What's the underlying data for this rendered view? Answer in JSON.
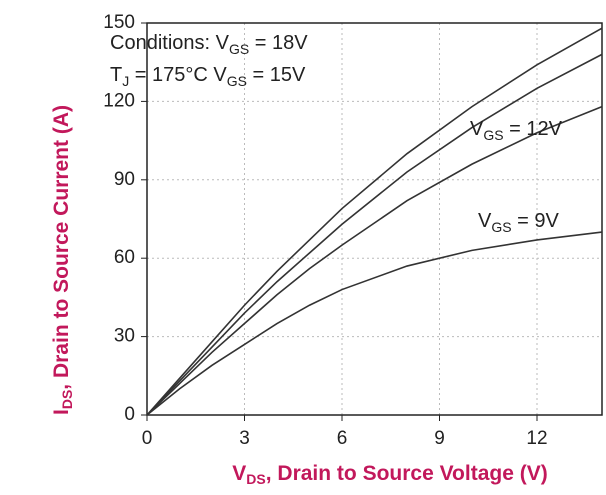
{
  "chart_data": {
    "type": "line",
    "y_label": "Drain to Source Current (A)",
    "y_label_sym": {
      "main": "I",
      "sub": "DS"
    },
    "x_label": "Drain to Source Voltage (V)",
    "x_label_sym": {
      "main": "V",
      "sub": "DS"
    },
    "x": [
      0,
      1,
      2,
      3,
      4,
      5,
      6,
      8,
      10,
      12,
      14
    ],
    "series": [
      {
        "name": "VGS = 18V",
        "color": "#333333",
        "values": [
          0,
          14,
          28,
          42,
          55,
          67,
          79,
          100,
          118,
          134,
          148
        ]
      },
      {
        "name": "VGS = 15V",
        "color": "#333333",
        "values": [
          0,
          13,
          26,
          39,
          51,
          62,
          73,
          93,
          110,
          125,
          138
        ]
      },
      {
        "name": "VGS = 12V",
        "color": "#333333",
        "values": [
          0,
          12,
          24,
          35,
          46,
          56,
          65,
          82,
          96,
          108,
          118
        ]
      },
      {
        "name": "VGS = 9V",
        "color": "#333333",
        "values": [
          0,
          10,
          19,
          27,
          35,
          42,
          48,
          57,
          63,
          67,
          70
        ]
      }
    ],
    "annotations": [
      {
        "main": "Conditions:",
        "sym": "V",
        "sub": "GS",
        "rest": " = 18V"
      },
      {
        "main": "T",
        "sub": "J",
        "rest": " = 175°C",
        "sym2": "V",
        "sub2": "GS",
        "rest2": " = 15V"
      },
      {
        "sym": "V",
        "sub": "GS",
        "rest": " = 12V"
      },
      {
        "sym": "V",
        "sub": "GS",
        "rest": " = 9V"
      }
    ],
    "xlim": [
      0,
      14
    ],
    "xticks": [
      0,
      3,
      6,
      9,
      12
    ],
    "ylim": [
      0,
      150
    ],
    "yticks": [
      0,
      30,
      60,
      90,
      120,
      150
    ],
    "grid": true
  }
}
